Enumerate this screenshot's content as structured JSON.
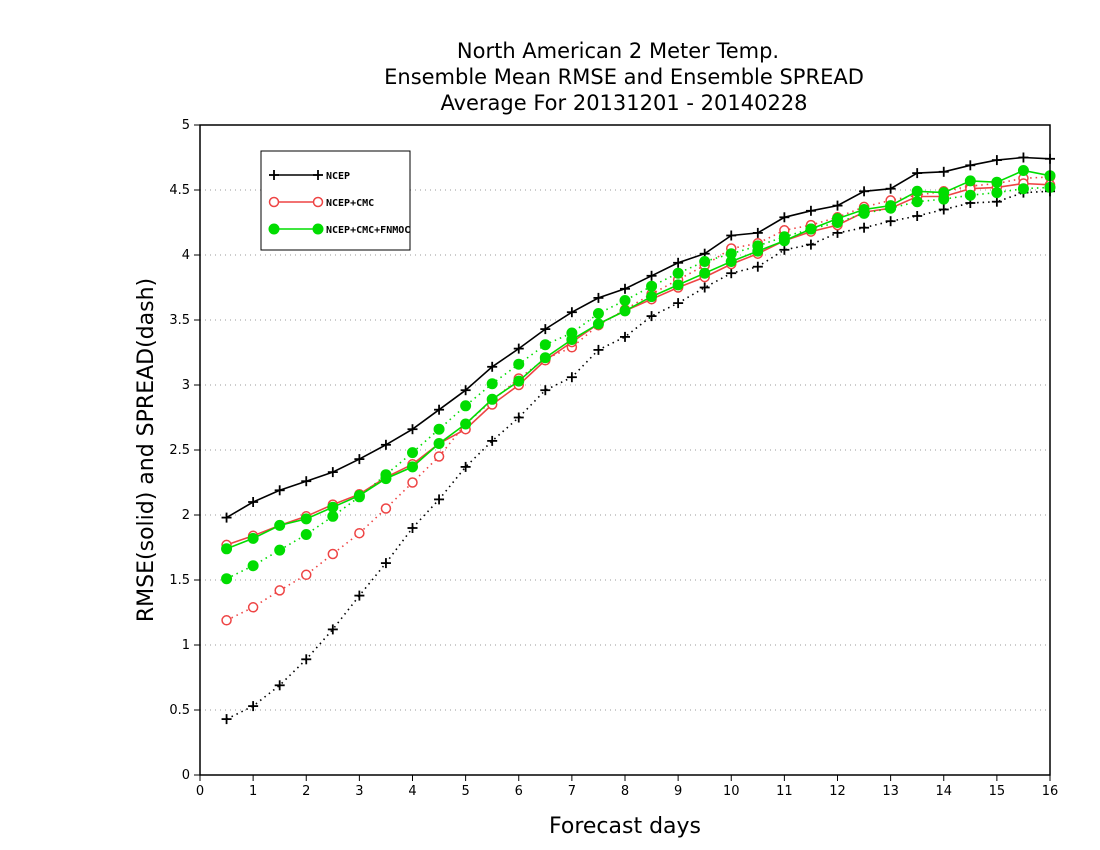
{
  "chart_data": {
    "type": "line",
    "title": [
      "North American 2 Meter Temp.",
      "Ensemble Mean RMSE and Ensemble SPREAD",
      "Average For 20131201 - 20140228"
    ],
    "xlabel": "Forecast days",
    "ylabel": "RMSE(solid) and SPREAD(dash)",
    "xlim": [
      0,
      16
    ],
    "ylim": [
      0,
      5
    ],
    "x_ticks": [
      "0",
      "1",
      "2",
      "3",
      "4",
      "5",
      "6",
      "7",
      "8",
      "9",
      "10",
      "11",
      "12",
      "13",
      "14",
      "15",
      "16"
    ],
    "y_ticks": [
      "0",
      "0.5",
      "1",
      "1.5",
      "2",
      "2.5",
      "3",
      "3.5",
      "4",
      "4.5",
      "5"
    ],
    "grid": "horizontal dotted",
    "legend_position": "top-left",
    "x": [
      0.5,
      1,
      1.5,
      2,
      2.5,
      3,
      3.5,
      4,
      4.5,
      5,
      5.5,
      6,
      6.5,
      7,
      7.5,
      8,
      8.5,
      9,
      9.5,
      10,
      10.5,
      11,
      11.5,
      12,
      12.5,
      13,
      13.5,
      14,
      14.5,
      15,
      15.5,
      16
    ],
    "series": [
      {
        "name": "NCEP",
        "color": "#000000",
        "marker": "plus",
        "rmse": [
          1.98,
          2.1,
          2.19,
          2.26,
          2.33,
          2.43,
          2.54,
          2.66,
          2.81,
          2.96,
          3.14,
          3.28,
          3.43,
          3.56,
          3.67,
          3.74,
          3.84,
          3.94,
          4.01,
          4.15,
          4.17,
          4.29,
          4.34,
          4.38,
          4.49,
          4.51,
          4.63,
          4.64,
          4.69,
          4.73,
          4.75,
          4.74
        ],
        "spread": [
          0.43,
          0.53,
          0.69,
          0.89,
          1.12,
          1.38,
          1.63,
          1.9,
          2.12,
          2.37,
          2.57,
          2.75,
          2.96,
          3.06,
          3.27,
          3.37,
          3.53,
          3.63,
          3.75,
          3.86,
          3.91,
          4.04,
          4.08,
          4.17,
          4.21,
          4.26,
          4.3,
          4.35,
          4.4,
          4.41,
          4.48,
          4.49
        ]
      },
      {
        "name": "NCEP+CMC",
        "color": "#ee4444",
        "marker": "open-circle",
        "rmse": [
          1.77,
          1.84,
          1.92,
          1.99,
          2.08,
          2.16,
          2.29,
          2.39,
          2.55,
          2.66,
          2.85,
          3.0,
          3.19,
          3.33,
          3.47,
          3.57,
          3.66,
          3.75,
          3.83,
          3.93,
          4.01,
          4.11,
          4.18,
          4.23,
          4.33,
          4.36,
          4.45,
          4.45,
          4.51,
          4.52,
          4.55,
          4.54
        ],
        "spread": [
          1.19,
          1.29,
          1.42,
          1.54,
          1.7,
          1.86,
          2.05,
          2.25,
          2.45,
          2.7,
          2.88,
          3.05,
          3.2,
          3.29,
          3.46,
          3.58,
          3.7,
          3.81,
          3.92,
          4.05,
          4.09,
          4.19,
          4.23,
          4.29,
          4.37,
          4.42,
          4.46,
          4.49,
          4.53,
          4.55,
          4.59,
          4.6
        ]
      },
      {
        "name": "NCEP+CMC+FNMOC",
        "color": "#00dd00",
        "marker": "filled-circle",
        "rmse": [
          1.74,
          1.82,
          1.92,
          1.97,
          2.06,
          2.15,
          2.28,
          2.37,
          2.55,
          2.7,
          2.89,
          3.03,
          3.21,
          3.35,
          3.47,
          3.57,
          3.68,
          3.77,
          3.86,
          3.95,
          4.03,
          4.11,
          4.2,
          4.28,
          4.35,
          4.38,
          4.49,
          4.48,
          4.57,
          4.56,
          4.65,
          4.61
        ],
        "spread": [
          1.51,
          1.61,
          1.73,
          1.85,
          1.99,
          2.14,
          2.31,
          2.48,
          2.66,
          2.84,
          3.01,
          3.16,
          3.31,
          3.4,
          3.55,
          3.65,
          3.76,
          3.86,
          3.95,
          4.01,
          4.07,
          4.14,
          4.2,
          4.25,
          4.32,
          4.36,
          4.41,
          4.43,
          4.46,
          4.48,
          4.51,
          4.52
        ]
      }
    ]
  }
}
